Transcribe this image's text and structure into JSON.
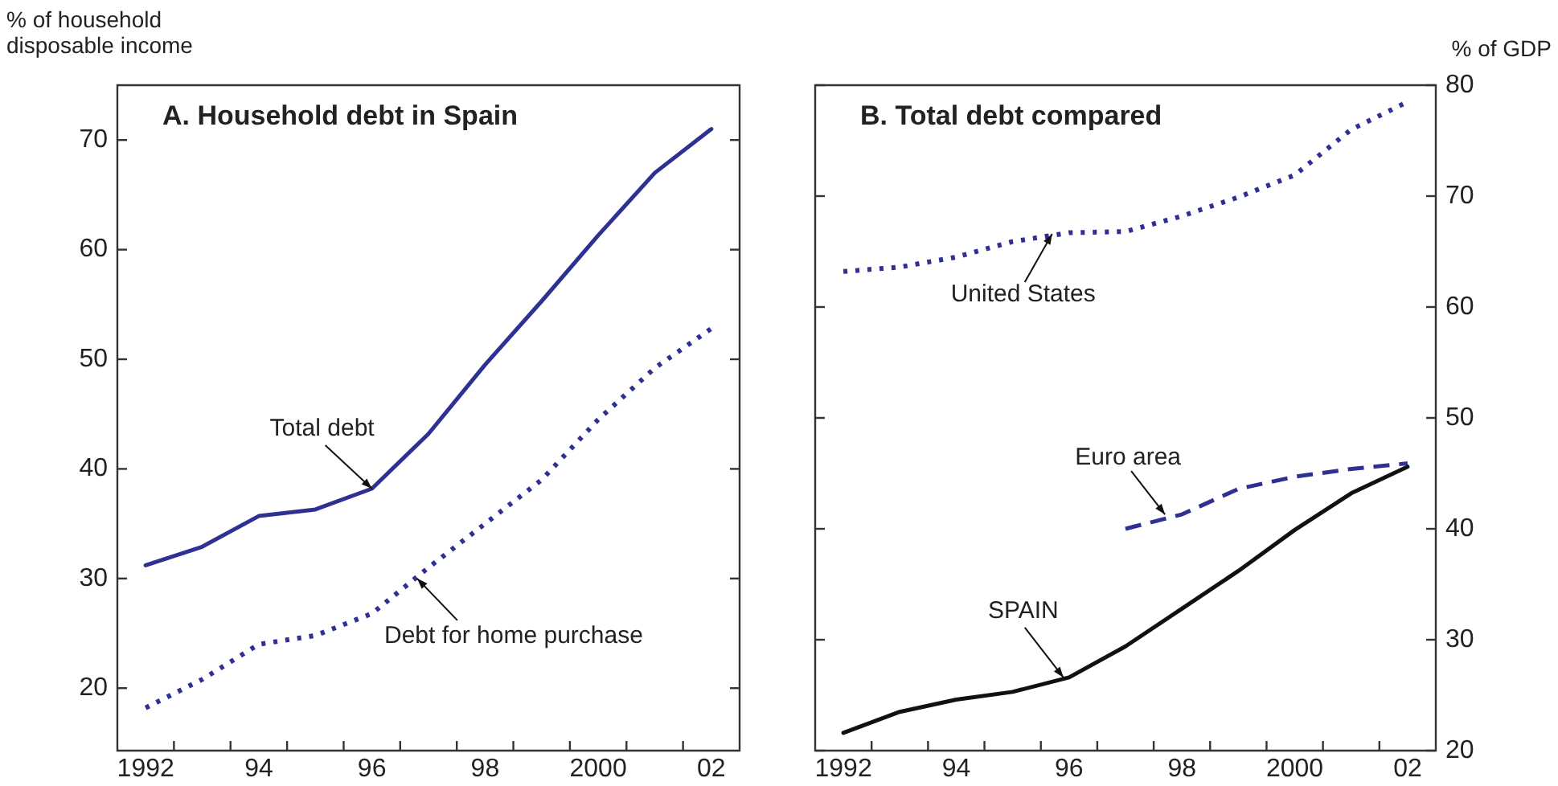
{
  "chart_data": [
    {
      "type": "line",
      "title": "A. Household debt in Spain",
      "ylabel": "% of household disposable income",
      "marker": "none",
      "grid": false,
      "legend": false,
      "x": [
        1992,
        1993,
        1994,
        1995,
        1996,
        1997,
        1998,
        1999,
        2000,
        2001,
        2002
      ],
      "xlim": [
        1991.5,
        2002.5
      ],
      "xticks": [
        {
          "value": 1992,
          "label": "1992"
        },
        {
          "value": 1992.5,
          "label": null
        },
        {
          "value": 1993.5,
          "label": null
        },
        {
          "value": 1994,
          "label": "94"
        },
        {
          "value": 1994.5,
          "label": null
        },
        {
          "value": 1995.5,
          "label": null
        },
        {
          "value": 1996,
          "label": "96"
        },
        {
          "value": 1996.5,
          "label": null
        },
        {
          "value": 1997.5,
          "label": null
        },
        {
          "value": 1998,
          "label": "98"
        },
        {
          "value": 1998.5,
          "label": null
        },
        {
          "value": 1999.5,
          "label": null
        },
        {
          "value": 2000,
          "label": "2000"
        },
        {
          "value": 2000.5,
          "label": null
        },
        {
          "value": 2001.5,
          "label": null
        },
        {
          "value": 2002,
          "label": "02"
        }
      ],
      "ylim": [
        14.3,
        75
      ],
      "yticks": [
        20,
        30,
        40,
        50,
        60,
        70
      ],
      "series": [
        {
          "color": "#2e3192",
          "line_style": "solid",
          "values": [
            31.2,
            32.9,
            35.7,
            36.3,
            38.2,
            43.2,
            49.5,
            55.3,
            61.3,
            67.0,
            71.0
          ]
        },
        {
          "color": "#2e3192",
          "line_style": "dotted",
          "values": [
            18.2,
            20.8,
            24.0,
            24.8,
            26.8,
            31.0,
            35.0,
            39.0,
            44.5,
            49.2,
            52.8
          ]
        }
      ],
      "annotations": [
        {
          "text": "Total debt",
          "x": 1996,
          "y": 38.2
        },
        {
          "text": "Debt for home purchase",
          "x": 1996.8,
          "y": 30
        }
      ]
    },
    {
      "type": "line",
      "title": "B. Total debt compared",
      "ylabel": "% of GDP",
      "marker": "none",
      "grid": false,
      "legend": false,
      "x": [
        1992,
        1993,
        1994,
        1995,
        1996,
        1997,
        1998,
        1999,
        2000,
        2001,
        2002
      ],
      "xlim": [
        1991.5,
        2002.5
      ],
      "xticks": [
        {
          "value": 1992,
          "label": "1992"
        },
        {
          "value": 1992.5,
          "label": null
        },
        {
          "value": 1993.5,
          "label": null
        },
        {
          "value": 1994,
          "label": "94"
        },
        {
          "value": 1994.5,
          "label": null
        },
        {
          "value": 1995.5,
          "label": null
        },
        {
          "value": 1996,
          "label": "96"
        },
        {
          "value": 1996.5,
          "label": null
        },
        {
          "value": 1997.5,
          "label": null
        },
        {
          "value": 1998,
          "label": "98"
        },
        {
          "value": 1998.5,
          "label": null
        },
        {
          "value": 1999.5,
          "label": null
        },
        {
          "value": 2000,
          "label": "2000"
        },
        {
          "value": 2000.5,
          "label": null
        },
        {
          "value": 2001.5,
          "label": null
        },
        {
          "value": 2002,
          "label": "02"
        }
      ],
      "ylim": [
        20,
        80
      ],
      "yticks": [
        20,
        30,
        40,
        50,
        60,
        70,
        80
      ],
      "series": [
        {
          "color": "#2e3192",
          "line_style": "dotted",
          "values": [
            63.2,
            63.6,
            64.5,
            65.9,
            66.7,
            66.8,
            68.2,
            69.9,
            71.9,
            76.0,
            78.5
          ]
        },
        {
          "color": "#2e3192",
          "line_style": "dashed",
          "values": [
            null,
            null,
            null,
            null,
            null,
            40.0,
            41.3,
            43.6,
            44.7,
            45.4,
            45.9
          ]
        },
        {
          "color": "#111111",
          "line_style": "solid",
          "values": [
            21.6,
            23.5,
            24.6,
            25.3,
            26.6,
            29.4,
            32.8,
            36.2,
            39.9,
            43.2,
            45.6
          ]
        }
      ],
      "annotations": [
        {
          "text": "United States",
          "x": 1995.7,
          "y": 66.6
        },
        {
          "text": "Euro area",
          "x": 1997.7,
          "y": 41.3
        },
        {
          "text": "SPAIN",
          "x": 1995.9,
          "y": 26.6
        }
      ]
    }
  ]
}
